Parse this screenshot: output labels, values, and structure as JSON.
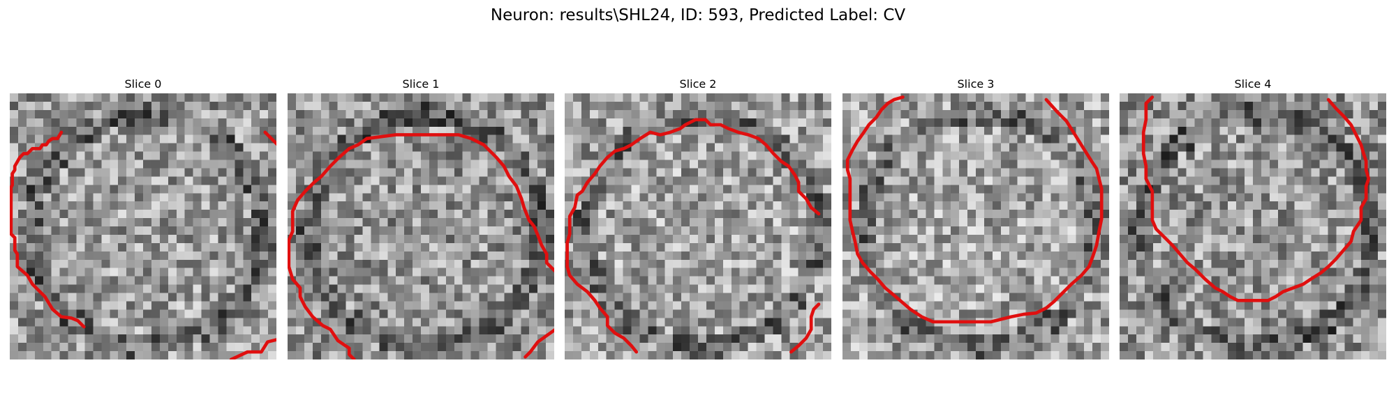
{
  "title": "Neuron: results\\SHL24, ID: 593, Predicted Label: CV",
  "contour_color": "#e00f0f",
  "colormap": "grayscale",
  "panels": [
    {
      "label": "Slice 0",
      "seed": 11,
      "shade": 0.0,
      "contours": [
        [
          [
            41,
            31
          ],
          [
            38,
            36
          ],
          [
            34,
            36
          ],
          [
            31,
            38
          ],
          [
            29,
            41
          ],
          [
            26,
            41
          ],
          [
            24,
            44
          ],
          [
            18,
            44
          ],
          [
            14,
            48
          ],
          [
            11,
            48
          ],
          [
            8,
            51
          ],
          [
            4,
            58
          ],
          [
            4,
            61
          ],
          [
            2,
            64
          ],
          [
            2,
            73
          ],
          [
            1,
            75
          ],
          [
            1,
            112
          ],
          [
            4,
            115
          ],
          [
            4,
            125
          ],
          [
            6,
            128
          ],
          [
            6,
            138
          ],
          [
            14,
            145
          ],
          [
            18,
            152
          ],
          [
            28,
            162
          ],
          [
            34,
            172
          ],
          [
            41,
            178
          ],
          [
            49,
            179
          ],
          [
            54,
            181
          ],
          [
            59,
            186
          ]
        ],
        [
          [
            203,
            31
          ],
          [
            213,
            41
          ],
          [
            216,
            44
          ],
          [
            219,
            48
          ],
          [
            223,
            54
          ],
          [
            229,
            61
          ],
          [
            234,
            68
          ],
          [
            239,
            74
          ],
          [
            243,
            81
          ],
          [
            246,
            91
          ],
          [
            247,
            101
          ],
          [
            248,
            108
          ],
          [
            252,
            116
          ],
          [
            252,
            125
          ],
          [
            253,
            135
          ],
          [
            253,
            145
          ],
          [
            248,
            152
          ],
          [
            244,
            158
          ],
          [
            240,
            165
          ],
          [
            234,
            175
          ],
          [
            231,
            180
          ],
          [
            226,
            186
          ],
          [
            219,
            192
          ],
          [
            213,
            196
          ],
          [
            205,
            198
          ],
          [
            200,
            206
          ],
          [
            189,
            206
          ],
          [
            176,
            212
          ]
        ]
      ]
    },
    {
      "label": "Slice 1",
      "seed": 22,
      "shade": -0.03,
      "contours": [
        [
          [
            63,
            36
          ],
          [
            56,
            41
          ],
          [
            49,
            44
          ],
          [
            41,
            51
          ],
          [
            34,
            58
          ],
          [
            27,
            66
          ],
          [
            21,
            71
          ],
          [
            14,
            78
          ],
          [
            8,
            85
          ],
          [
            4,
            94
          ],
          [
            4,
            110
          ],
          [
            1,
            117
          ],
          [
            1,
            138
          ],
          [
            4,
            148
          ],
          [
            10,
            155
          ],
          [
            10,
            162
          ],
          [
            14,
            170
          ],
          [
            20,
            178
          ],
          [
            28,
            185
          ],
          [
            34,
            188
          ],
          [
            40,
            197
          ],
          [
            49,
            203
          ],
          [
            49,
            208
          ],
          [
            53,
            212
          ]
        ],
        [
          [
            63,
            36
          ],
          [
            86,
            33
          ],
          [
            106,
            33
          ],
          [
            126,
            33
          ],
          [
            136,
            33
          ],
          [
            146,
            36
          ],
          [
            156,
            41
          ],
          [
            166,
            51
          ],
          [
            172,
            58
          ],
          [
            176,
            66
          ],
          [
            182,
            74
          ],
          [
            186,
            84
          ],
          [
            188,
            91
          ],
          [
            192,
            101
          ],
          [
            196,
            106
          ],
          [
            199,
            113
          ],
          [
            202,
            121
          ],
          [
            206,
            128
          ],
          [
            206,
            135
          ],
          [
            212,
            141
          ],
          [
            220,
            148
          ]
        ],
        [
          [
            219,
            178
          ],
          [
            213,
            188
          ],
          [
            206,
            193
          ],
          [
            199,
            198
          ],
          [
            193,
            206
          ],
          [
            189,
            210
          ]
        ]
      ]
    },
    {
      "label": "Slice 2",
      "seed": 33,
      "shade": 0.02,
      "contours": [
        [
          [
            68,
            31
          ],
          [
            76,
            33
          ],
          [
            84,
            31
          ],
          [
            92,
            28
          ],
          [
            96,
            25
          ],
          [
            104,
            21
          ],
          [
            112,
            21
          ],
          [
            116,
            25
          ],
          [
            124,
            25
          ],
          [
            130,
            28
          ],
          [
            138,
            31
          ],
          [
            146,
            33
          ],
          [
            154,
            36
          ],
          [
            160,
            41
          ],
          [
            166,
            48
          ],
          [
            172,
            54
          ],
          [
            178,
            58
          ],
          [
            183,
            65
          ],
          [
            186,
            71
          ],
          [
            186,
            78
          ],
          [
            192,
            84
          ],
          [
            196,
            91
          ],
          [
            202,
            96
          ]
        ],
        [
          [
            68,
            31
          ],
          [
            60,
            36
          ],
          [
            53,
            41
          ],
          [
            47,
            44
          ],
          [
            40,
            46
          ],
          [
            34,
            51
          ],
          [
            28,
            58
          ],
          [
            24,
            64
          ],
          [
            18,
            71
          ],
          [
            14,
            78
          ],
          [
            10,
            81
          ],
          [
            8,
            91
          ],
          [
            4,
            98
          ],
          [
            4,
            112
          ],
          [
            2,
            119
          ],
          [
            2,
            138
          ],
          [
            4,
            145
          ],
          [
            10,
            152
          ],
          [
            18,
            158
          ],
          [
            24,
            165
          ],
          [
            28,
            171
          ],
          [
            34,
            178
          ],
          [
            34,
            185
          ],
          [
            40,
            191
          ],
          [
            47,
            195
          ],
          [
            53,
            201
          ],
          [
            57,
            206
          ]
        ],
        [
          [
            202,
            168
          ],
          [
            198,
            172
          ],
          [
            196,
            178
          ],
          [
            196,
            188
          ],
          [
            192,
            195
          ],
          [
            186,
            201
          ],
          [
            180,
            206
          ]
        ]
      ]
    },
    {
      "label": "Slice 3",
      "seed": 44,
      "shade": 0.03,
      "contours": [
        [
          [
            48,
            3
          ],
          [
            41,
            5
          ],
          [
            36,
            8
          ],
          [
            31,
            13
          ],
          [
            27,
            19
          ],
          [
            21,
            25
          ],
          [
            17,
            31
          ],
          [
            12,
            38
          ],
          [
            8,
            45
          ],
          [
            4,
            53
          ],
          [
            4,
            61
          ],
          [
            6,
            68
          ],
          [
            6,
            78
          ],
          [
            6,
            91
          ],
          [
            6,
            101
          ],
          [
            8,
            110
          ],
          [
            10,
            118
          ],
          [
            12,
            128
          ],
          [
            16,
            135
          ],
          [
            22,
            142
          ],
          [
            28,
            148
          ],
          [
            34,
            155
          ],
          [
            40,
            160
          ],
          [
            47,
            166
          ],
          [
            54,
            172
          ],
          [
            63,
            178
          ],
          [
            72,
            182
          ],
          [
            88,
            182
          ],
          [
            102,
            182
          ],
          [
            118,
            182
          ],
          [
            134,
            178
          ],
          [
            144,
            176
          ],
          [
            154,
            175
          ],
          [
            162,
            171
          ],
          [
            168,
            166
          ],
          [
            174,
            160
          ],
          [
            182,
            152
          ],
          [
            190,
            145
          ],
          [
            196,
            138
          ],
          [
            199,
            130
          ],
          [
            202,
            121
          ],
          [
            204,
            110
          ],
          [
            206,
            100
          ],
          [
            206,
            88
          ],
          [
            206,
            76
          ],
          [
            204,
            68
          ],
          [
            202,
            60
          ],
          [
            198,
            54
          ],
          [
            193,
            46
          ],
          [
            188,
            38
          ],
          [
            183,
            30
          ],
          [
            178,
            22
          ],
          [
            171,
            15
          ],
          [
            162,
            5
          ]
        ]
      ]
    },
    {
      "label": "Slice 4",
      "seed": 55,
      "shade": -0.02,
      "contours": [
        [
          [
            26,
            3
          ],
          [
            21,
            8
          ],
          [
            21,
            21
          ],
          [
            19,
            31
          ],
          [
            19,
            48
          ],
          [
            21,
            58
          ],
          [
            21,
            68
          ],
          [
            26,
            78
          ],
          [
            26,
            101
          ],
          [
            29,
            108
          ],
          [
            36,
            115
          ],
          [
            42,
            121
          ],
          [
            48,
            128
          ],
          [
            54,
            135
          ],
          [
            60,
            140
          ],
          [
            68,
            148
          ],
          [
            76,
            155
          ],
          [
            82,
            158
          ],
          [
            88,
            162
          ],
          [
            94,
            165
          ],
          [
            102,
            165
          ],
          [
            110,
            165
          ],
          [
            118,
            165
          ],
          [
            124,
            162
          ],
          [
            130,
            158
          ],
          [
            138,
            155
          ],
          [
            146,
            152
          ],
          [
            152,
            148
          ],
          [
            160,
            143
          ],
          [
            166,
            138
          ],
          [
            172,
            132
          ],
          [
            178,
            125
          ],
          [
            184,
            118
          ],
          [
            186,
            110
          ],
          [
            192,
            101
          ],
          [
            192,
            91
          ],
          [
            196,
            84
          ],
          [
            196,
            74
          ],
          [
            198,
            68
          ],
          [
            196,
            61
          ],
          [
            196,
            54
          ],
          [
            194,
            48
          ],
          [
            192,
            41
          ],
          [
            188,
            33
          ],
          [
            184,
            25
          ],
          [
            178,
            18
          ],
          [
            172,
            12
          ],
          [
            166,
            5
          ]
        ]
      ]
    }
  ]
}
